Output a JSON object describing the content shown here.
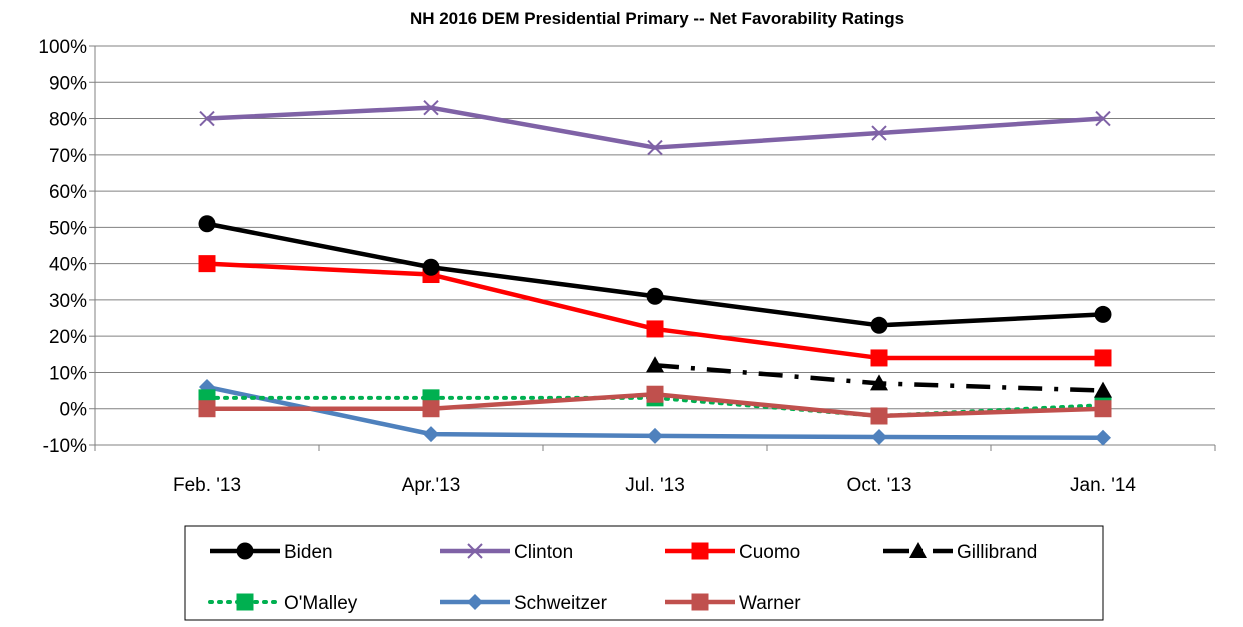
{
  "chart_data": {
    "type": "line",
    "title": "NH 2016 DEM Presidential Primary -- Net Favorability Ratings",
    "xlabel": "",
    "ylabel": "",
    "categories": [
      "Feb. '13",
      "Apr.'13",
      "Jul. '13",
      "Oct. '13",
      "Jan. '14"
    ],
    "ylim": [
      -10,
      100
    ],
    "y_tick_step": 10,
    "y_tick_format": "percent",
    "grid": "horizontal",
    "legend_position": "bottom",
    "series": [
      {
        "name": "Biden",
        "values": [
          51,
          39,
          31,
          23,
          26
        ],
        "color": "#000000",
        "marker": "circle",
        "dash": "solid"
      },
      {
        "name": "Clinton",
        "values": [
          80,
          83,
          72,
          76,
          80
        ],
        "color": "#7f62a6",
        "marker": "x",
        "dash": "solid"
      },
      {
        "name": "Cuomo",
        "values": [
          40,
          37,
          22,
          14,
          14
        ],
        "color": "#ff0000",
        "marker": "square",
        "dash": "solid"
      },
      {
        "name": "Gillibrand",
        "values": [
          null,
          null,
          12,
          7,
          5
        ],
        "color": "#000000",
        "marker": "triangle",
        "dash": "dashdot"
      },
      {
        "name": "O'Malley",
        "values": [
          3,
          3,
          3,
          -2,
          1
        ],
        "color": "#00b050",
        "marker": "square",
        "dash": "dotted"
      },
      {
        "name": "Schweitzer",
        "values": [
          6,
          -7,
          -7.5,
          -7.8,
          -8
        ],
        "color": "#4f81bd",
        "marker": "diamond",
        "dash": "solid"
      },
      {
        "name": "Warner",
        "values": [
          0,
          0,
          4,
          -2,
          0
        ],
        "color": "#c0504d",
        "marker": "square",
        "dash": "solid"
      }
    ]
  }
}
